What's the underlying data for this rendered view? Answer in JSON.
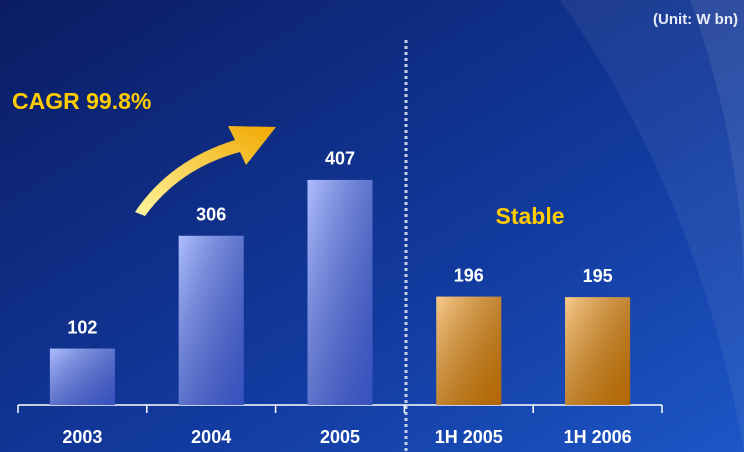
{
  "chart_data": {
    "type": "bar",
    "unit": "(Unit: W bn)",
    "annotations": [
      "CAGR 99.8%",
      "Stable"
    ],
    "categories": [
      "2003",
      "2004",
      "2005",
      "1H 2005",
      "1H 2006"
    ],
    "values": [
      102,
      306,
      407,
      196,
      195
    ],
    "colors": [
      "#4a6dff",
      "#4a6dff",
      "#4a6dff",
      "#f08a00",
      "#f08a00"
    ]
  }
}
